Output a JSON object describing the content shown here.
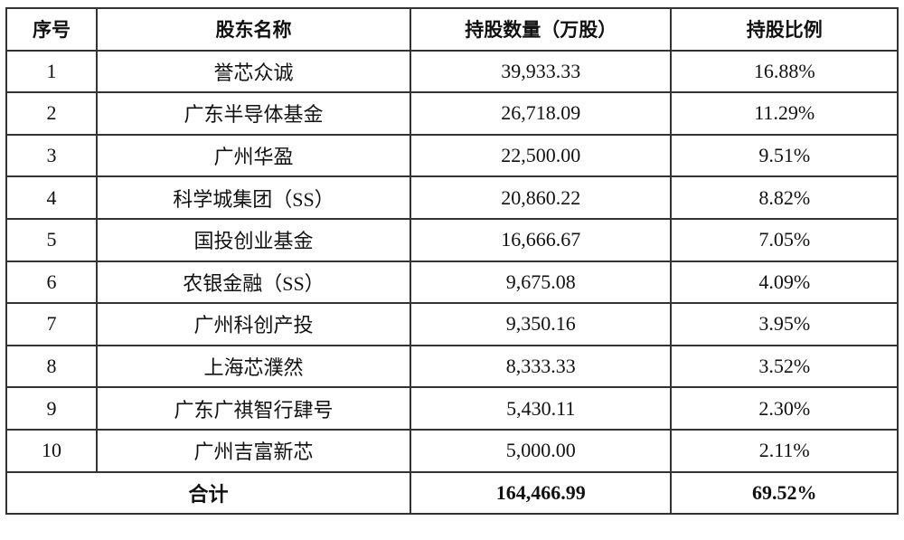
{
  "headers": [
    "序号",
    "股东名称",
    "持股数量（万股）",
    "持股比例"
  ],
  "rows": [
    {
      "no": "1",
      "name": "誉芯众诚",
      "shares": "39,933.33",
      "ratio": "16.88%"
    },
    {
      "no": "2",
      "name": "广东半导体基金",
      "shares": "26,718.09",
      "ratio": "11.29%"
    },
    {
      "no": "3",
      "name": "广州华盈",
      "shares": "22,500.00",
      "ratio": "9.51%"
    },
    {
      "no": "4",
      "name": "科学城集团（SS）",
      "shares": "20,860.22",
      "ratio": "8.82%"
    },
    {
      "no": "5",
      "name": "国投创业基金",
      "shares": "16,666.67",
      "ratio": "7.05%"
    },
    {
      "no": "6",
      "name": "农银金融（SS）",
      "shares": "9,675.08",
      "ratio": "4.09%"
    },
    {
      "no": "7",
      "name": "广州科创产投",
      "shares": "9,350.16",
      "ratio": "3.95%"
    },
    {
      "no": "8",
      "name": "上海芯濮然",
      "shares": "8,333.33",
      "ratio": "3.52%"
    },
    {
      "no": "9",
      "name": "广东广祺智行肆号",
      "shares": "5,430.11",
      "ratio": "2.30%"
    },
    {
      "no": "10",
      "name": "广州吉富新芯",
      "shares": "5,000.00",
      "ratio": "2.11%"
    }
  ],
  "total": {
    "label": "合计",
    "shares": "164,466.99",
    "ratio": "69.52%"
  }
}
